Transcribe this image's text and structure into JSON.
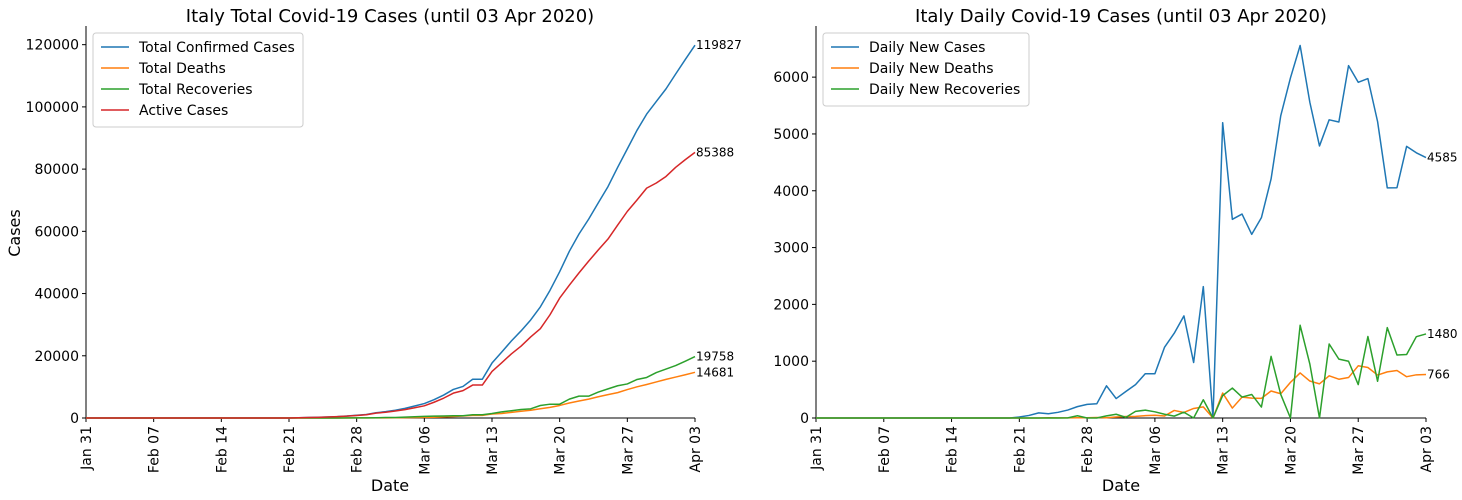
{
  "colors": {
    "blue": "#1f77b4",
    "orange": "#ff7f0e",
    "green": "#2ca02c",
    "red": "#d62728"
  },
  "chart_data": [
    {
      "type": "line",
      "title": "Italy Total Covid-19 Cases (until 03 Apr 2020)",
      "xlabel": "Date",
      "ylabel": "Cases",
      "ylim": [
        0,
        126000
      ],
      "yticks": [
        0,
        20000,
        40000,
        60000,
        80000,
        100000,
        120000
      ],
      "xtick_labels": [
        "Jan 31",
        "Feb 07",
        "Feb 14",
        "Feb 21",
        "Feb 28",
        "Mar 06",
        "Mar 13",
        "Mar 20",
        "Mar 27",
        "Apr 03"
      ],
      "x_start": "Jan 31",
      "x_end": "Apr 03",
      "grid": false,
      "legend": "top-left",
      "series": [
        {
          "name": "Total Confirmed Cases",
          "color": "#1f77b4",
          "end_label": "119827",
          "values": [
            2,
            2,
            2,
            2,
            2,
            2,
            2,
            3,
            3,
            3,
            3,
            3,
            3,
            3,
            3,
            3,
            3,
            3,
            3,
            3,
            3,
            20,
            79,
            150,
            227,
            320,
            445,
            650,
            888,
            1128,
            1694,
            2036,
            2502,
            3089,
            3858,
            4636,
            5883,
            7375,
            9172,
            10149,
            12462,
            12462,
            17660,
            21157,
            24747,
            27980,
            31506,
            35713,
            41035,
            47021,
            53578,
            59138,
            63927,
            69176,
            74386,
            80589,
            86498,
            92472,
            97689,
            101739,
            105792,
            110574,
            115242,
            119827
          ]
        },
        {
          "name": "Total Deaths",
          "color": "#ff7f0e",
          "end_label": "14681",
          "values": [
            0,
            0,
            0,
            0,
            0,
            0,
            0,
            0,
            0,
            0,
            0,
            0,
            0,
            0,
            0,
            0,
            0,
            0,
            0,
            0,
            0,
            1,
            2,
            3,
            7,
            10,
            12,
            17,
            21,
            29,
            34,
            52,
            79,
            107,
            148,
            197,
            233,
            366,
            463,
            631,
            827,
            827,
            1266,
            1441,
            1809,
            2158,
            2503,
            2978,
            3405,
            4032,
            4825,
            5476,
            6077,
            6820,
            7503,
            8165,
            9134,
            10023,
            10779,
            11591,
            12428,
            13155,
            13915,
            14681
          ]
        },
        {
          "name": "Total Recoveries",
          "color": "#2ca02c",
          "end_label": "19758",
          "values": [
            0,
            0,
            0,
            0,
            0,
            0,
            0,
            0,
            0,
            0,
            0,
            0,
            0,
            0,
            0,
            0,
            0,
            0,
            0,
            0,
            0,
            0,
            1,
            1,
            1,
            1,
            3,
            45,
            46,
            46,
            83,
            149,
            160,
            276,
            414,
            523,
            589,
            622,
            724,
            724,
            1045,
            1045,
            1439,
            1966,
            2335,
            2749,
            2941,
            4025,
            4440,
            4440,
            6072,
            7024,
            7024,
            8326,
            9362,
            10361,
            10950,
            12384,
            13030,
            14620,
            15729,
            16847,
            18278,
            19758
          ]
        },
        {
          "name": "Active Cases",
          "color": "#d62728",
          "end_label": "85388",
          "values": [
            2,
            2,
            2,
            2,
            2,
            2,
            2,
            3,
            3,
            3,
            3,
            3,
            3,
            3,
            3,
            3,
            3,
            3,
            3,
            3,
            3,
            19,
            76,
            146,
            219,
            309,
            430,
            588,
            821,
            1053,
            1577,
            1835,
            2263,
            2706,
            3296,
            3916,
            5061,
            6387,
            7985,
            8794,
            10590,
            10590,
            14955,
            17750,
            20603,
            23073,
            26062,
            28710,
            33190,
            38549,
            42681,
            46638,
            50418,
            54030,
            57521,
            62013,
            66414,
            70065,
            73880,
            75528,
            77635,
            80572,
            83049,
            85388
          ]
        }
      ]
    },
    {
      "type": "line",
      "title": "Italy Daily Covid-19 Cases (until 03 Apr 2020)",
      "xlabel": "Date",
      "ylabel": "",
      "ylim": [
        0,
        6900
      ],
      "yticks": [
        0,
        1000,
        2000,
        3000,
        4000,
        5000,
        6000
      ],
      "xtick_labels": [
        "Jan 31",
        "Feb 07",
        "Feb 14",
        "Feb 21",
        "Feb 28",
        "Mar 06",
        "Mar 13",
        "Mar 20",
        "Mar 27",
        "Apr 03"
      ],
      "x_start": "Jan 31",
      "x_end": "Apr 03",
      "grid": false,
      "legend": "top-left",
      "series": [
        {
          "name": "Daily New Cases",
          "color": "#1f77b4",
          "end_label": "4585",
          "values": [
            0,
            0,
            0,
            0,
            0,
            0,
            0,
            0,
            0,
            0,
            0,
            0,
            0,
            0,
            0,
            0,
            0,
            0,
            0,
            0,
            0,
            17,
            45,
            90,
            75,
            100,
            140,
            200,
            240,
            250,
            566,
            342,
            466,
            587,
            778,
            778,
            1247,
            1492,
            1797,
            977,
            2313,
            0,
            5198,
            3497,
            3590,
            3233,
            3526,
            4207,
            5322,
            5986,
            6557,
            5560,
            4789,
            5249,
            5210,
            6203,
            5909,
            5974,
            5217,
            4050,
            4053,
            4782,
            4668,
            4585
          ]
        },
        {
          "name": "Daily New Deaths",
          "color": "#ff7f0e",
          "end_label": "766",
          "values": [
            0,
            0,
            0,
            0,
            0,
            0,
            0,
            0,
            0,
            0,
            0,
            0,
            0,
            0,
            0,
            0,
            0,
            0,
            0,
            0,
            0,
            1,
            1,
            1,
            4,
            3,
            2,
            5,
            4,
            8,
            5,
            18,
            27,
            28,
            41,
            49,
            36,
            133,
            97,
            168,
            196,
            0,
            439,
            175,
            368,
            349,
            345,
            475,
            427,
            627,
            793,
            651,
            601,
            743,
            683,
            712,
            919,
            889,
            756,
            812,
            837,
            727,
            760,
            766
          ]
        },
        {
          "name": "Daily New Recoveries",
          "color": "#2ca02c",
          "end_label": "1480",
          "values": [
            0,
            0,
            0,
            0,
            0,
            0,
            0,
            0,
            0,
            0,
            0,
            0,
            0,
            0,
            0,
            0,
            0,
            0,
            0,
            0,
            0,
            0,
            0,
            0,
            0,
            0,
            2,
            40,
            0,
            0,
            37,
            66,
            11,
            116,
            138,
            109,
            66,
            33,
            102,
            0,
            321,
            0,
            394,
            527,
            369,
            414,
            192,
            1084,
            415,
            0,
            1632,
            952,
            0,
            1302,
            1036,
            999,
            589,
            1434,
            646,
            1590,
            1109,
            1118,
            1431,
            1480
          ]
        }
      ]
    }
  ]
}
